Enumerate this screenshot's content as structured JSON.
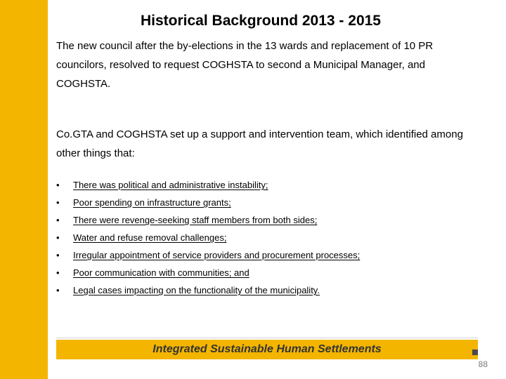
{
  "title": {
    "text": "Historical Background 2013 - 2015",
    "fontsize": 21
  },
  "paragraphs": {
    "p1": "The new council after the by-elections in the 13 wards and replacement of 10 PR councilors, resolved to request COGHSTA to second a Municipal Manager, and COGHSTA.",
    "p2": "Co.GTA and COGHSTA set up a support and intervention team, which identified among other things that:",
    "fontsize": 15
  },
  "bullets": {
    "items": [
      "There was political and administrative instability;",
      "Poor spending on infrastructure grants;",
      "There were revenge-seeking staff members from both sides;",
      "Water and refuse removal challenges;",
      "Irregular appointment of service providers and procurement processes;",
      "Poor communication with communities; and",
      "Legal cases impacting on the functionality of the municipality."
    ],
    "fontsize": 13
  },
  "footer": {
    "text": "Integrated Sustainable Human Settlements",
    "fontsize": 16
  },
  "page_number": "88",
  "colors": {
    "accent": "#f3b500",
    "text": "#000000",
    "footer_text": "#333333",
    "background": "#ffffff"
  }
}
